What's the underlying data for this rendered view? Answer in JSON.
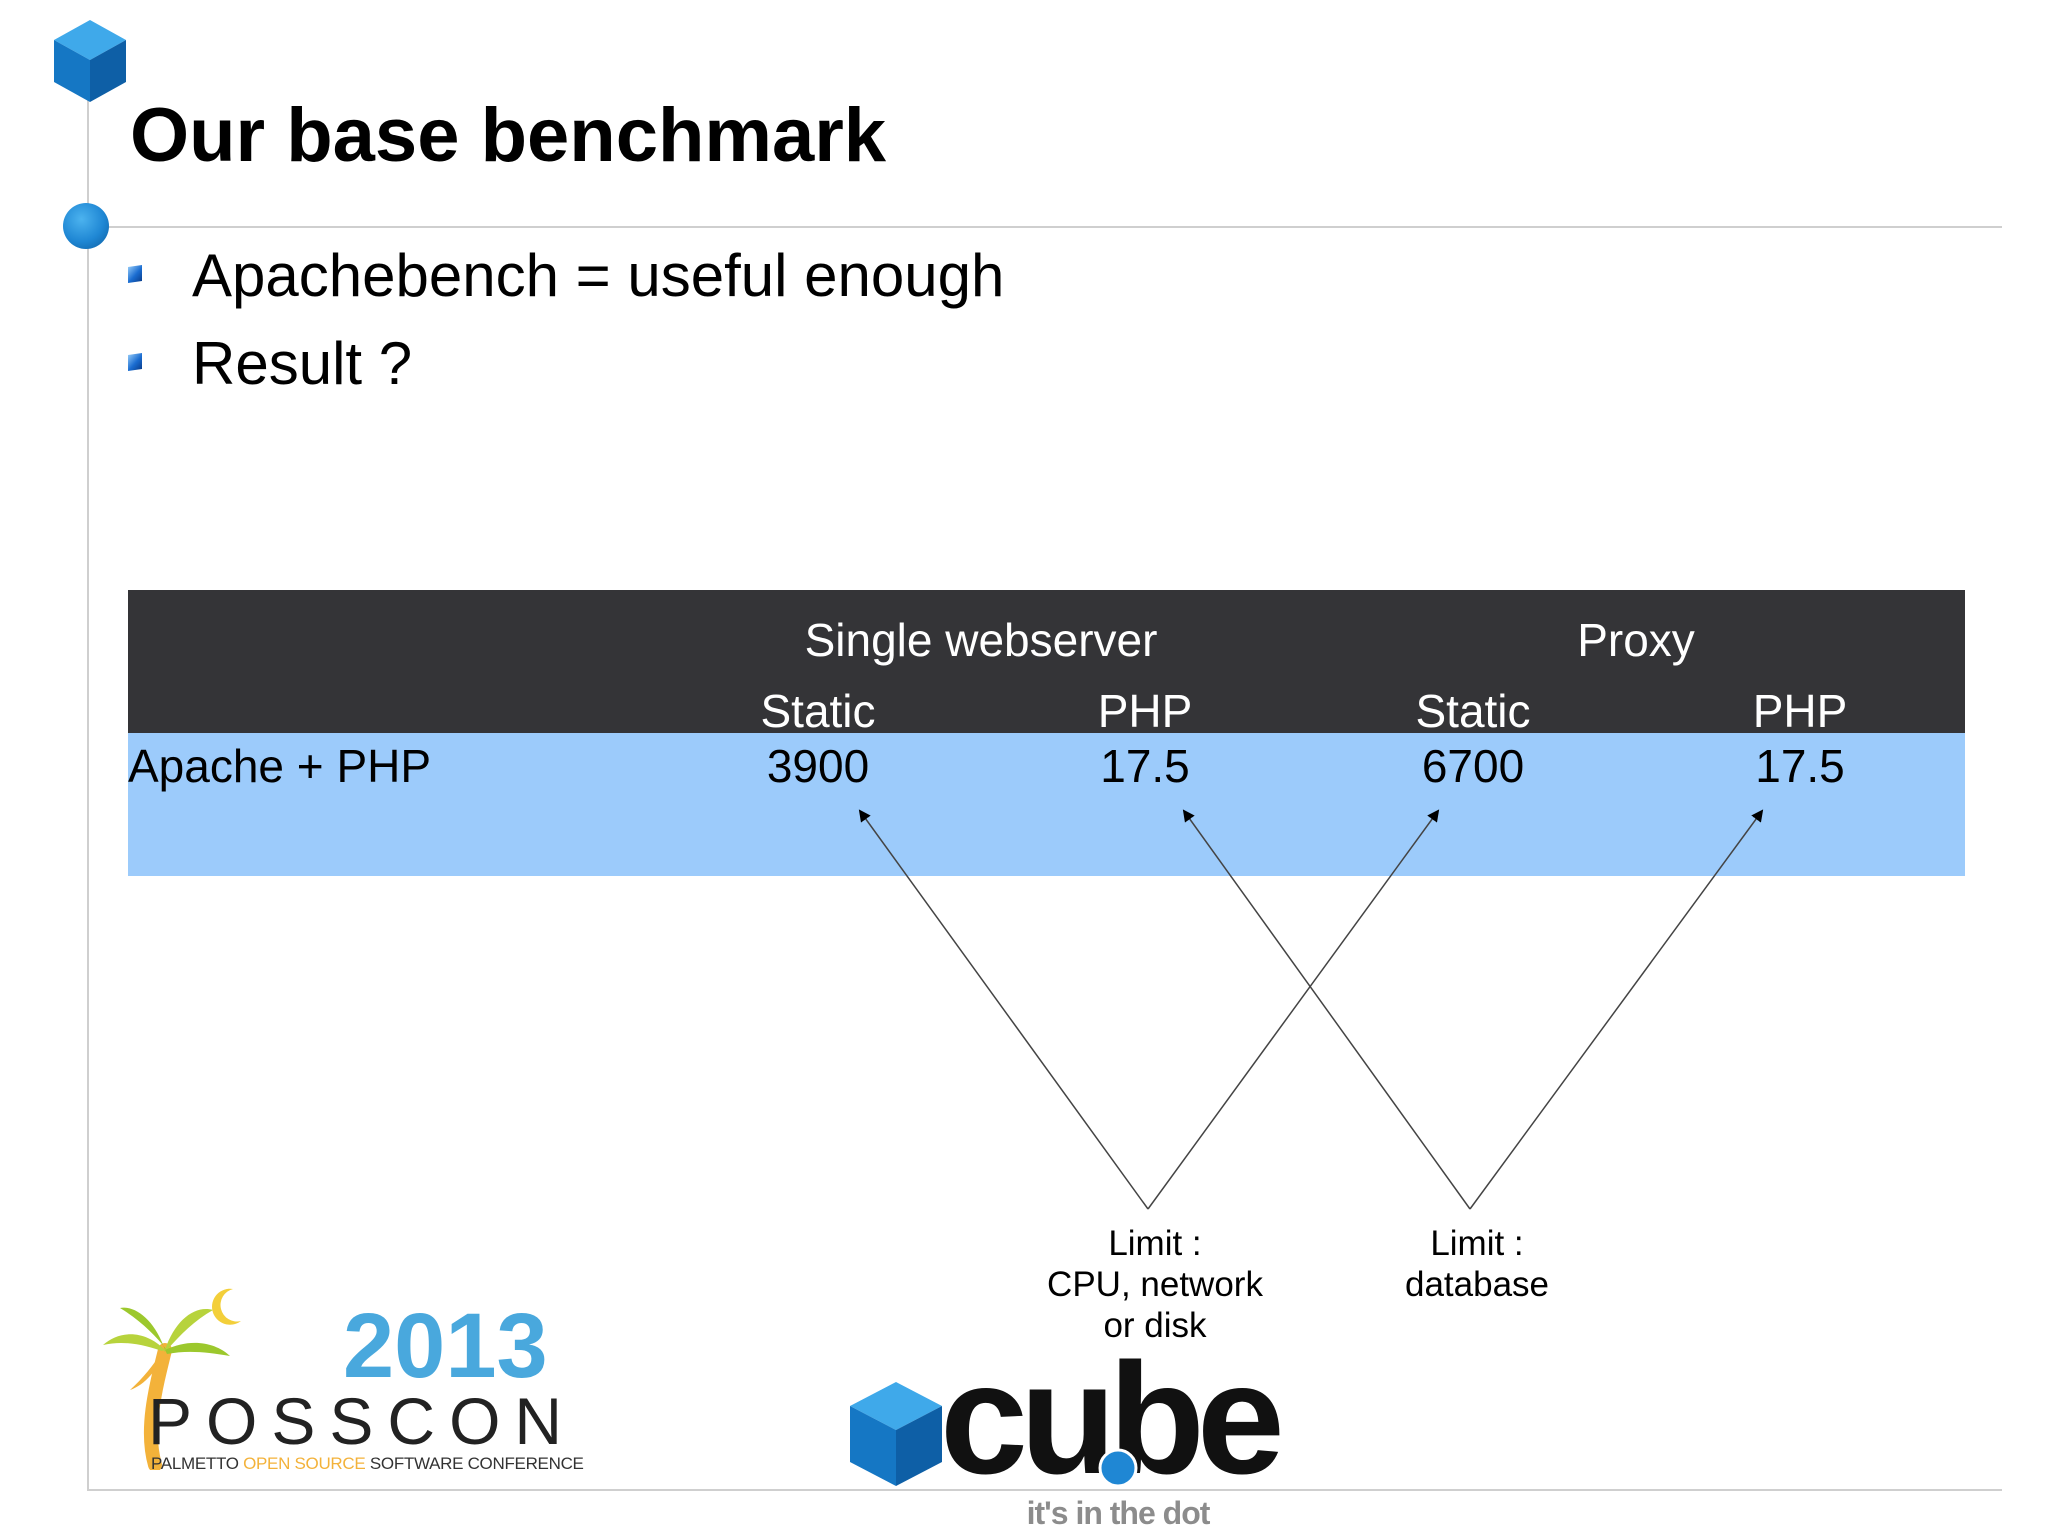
{
  "slide": {
    "title": "Our base benchmark",
    "bullets": [
      "Apachebench = useful enough",
      "Result ?"
    ]
  },
  "table": {
    "group_headers": [
      "Single webserver",
      "Proxy"
    ],
    "sub_headers": [
      "Static",
      "PHP",
      "Static",
      "PHP"
    ],
    "rows": [
      {
        "label": "Apache + PHP",
        "values": [
          "3900",
          "17.5",
          "6700",
          "17.5"
        ]
      }
    ]
  },
  "annotations": [
    {
      "lines": [
        "Limit :",
        "CPU, network",
        "or disk"
      ]
    },
    {
      "lines": [
        "Limit :",
        "database"
      ]
    }
  ],
  "logos": {
    "posscon": {
      "year": "2013",
      "name": "POSSCON",
      "tagline_parts": [
        "PALMETTO ",
        "OPEN SOURCE",
        " SOFTWARE CONFERENCE"
      ]
    },
    "cube": {
      "wordmark": "cube",
      "tagline": "it's in the dot"
    }
  },
  "colors": {
    "header_bg": "#343437",
    "row_bg": "#9ccbfb",
    "accent_blue": "#1f87d4",
    "posscon_blue": "#49a8dd",
    "posscon_orange": "#f3b23a"
  },
  "icons": [
    "cube-icon",
    "circle-dot-icon",
    "bullet-square-icon",
    "palm-tree-icon",
    "crescent-moon-icon"
  ]
}
